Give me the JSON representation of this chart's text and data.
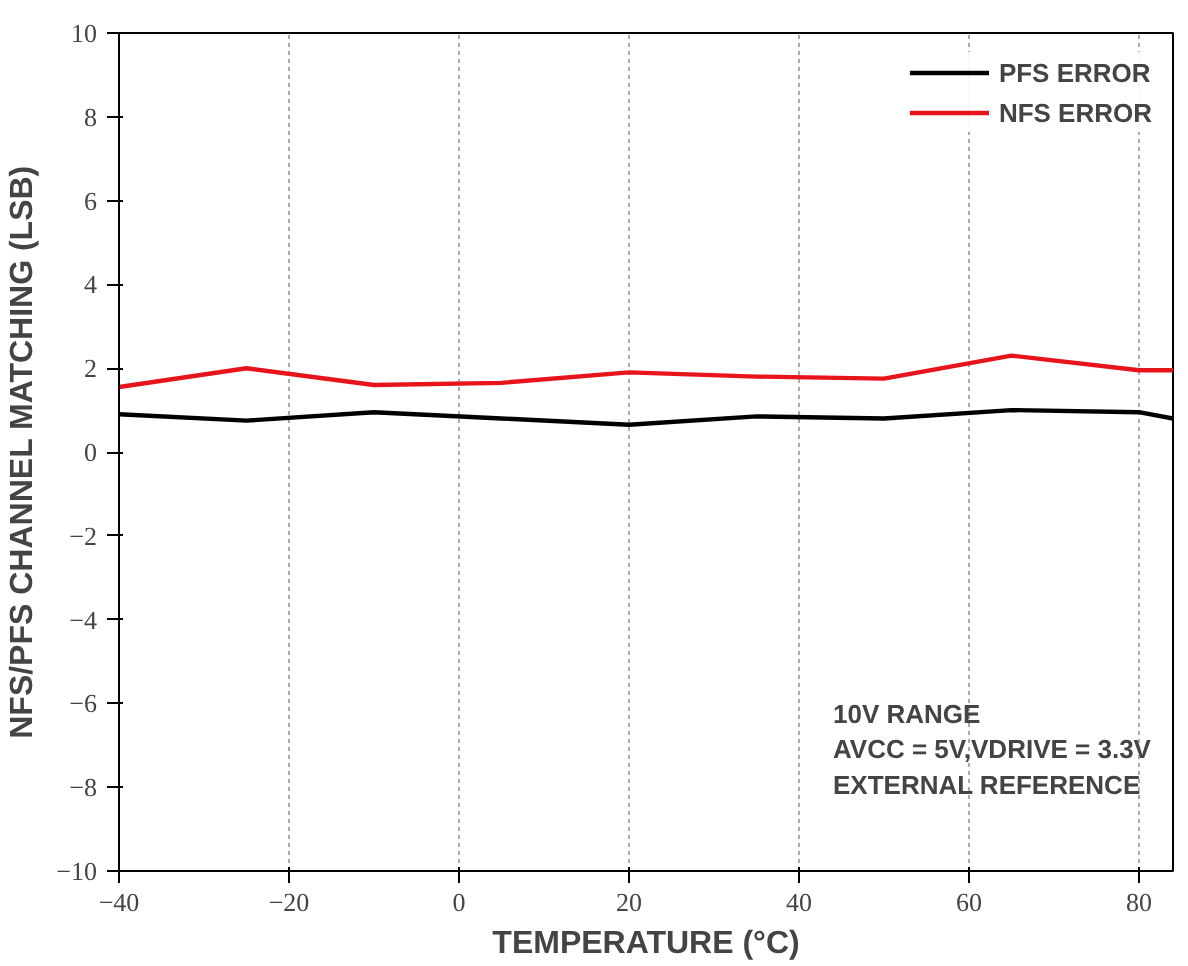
{
  "chart_data": {
    "type": "line",
    "xlabel": "TEMPERATURE (°C)",
    "ylabel": "NFS/PFS CHANNEL MATCHING (LSB)",
    "x": [
      -40,
      -25,
      -10,
      5,
      20,
      35,
      50,
      65,
      80,
      84
    ],
    "series": [
      {
        "name": "PFS ERROR",
        "color": "#000000",
        "values": [
          0.9,
          0.75,
          0.95,
          0.8,
          0.65,
          0.85,
          0.8,
          1.0,
          0.95,
          0.8
        ]
      },
      {
        "name": "NFS ERROR",
        "color": "#e8141b",
        "values": [
          1.55,
          2.0,
          1.6,
          1.65,
          1.9,
          1.8,
          1.75,
          2.3,
          1.95,
          1.95
        ]
      }
    ],
    "xlim": [
      -40,
      84
    ],
    "xticks": [
      -40,
      -20,
      0,
      20,
      40,
      60,
      80
    ],
    "ylim": [
      -10,
      10
    ],
    "yticks": [
      -10,
      -8,
      -6,
      -4,
      -2,
      0,
      2,
      4,
      6,
      8,
      10
    ],
    "grid": "x",
    "legend": "top right",
    "line_style": "solid",
    "marker": "none",
    "annotations": [
      "10V RANGE",
      "AVCC = 5V,VDRIVE = 3.3V",
      "EXTERNAL REFERENCE"
    ]
  }
}
